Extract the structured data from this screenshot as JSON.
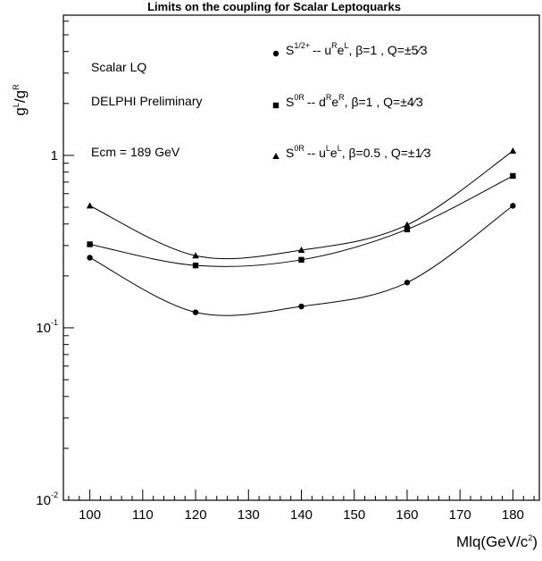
{
  "chart_data": {
    "type": "line",
    "title": "Limits on the coupling for Scalar Leptoquarks",
    "xlabel": "Mlq(GeV/c²)",
    "ylabel": "gL/gR",
    "xlim": [
      95,
      185
    ],
    "ylim": [
      0.01,
      6.5
    ],
    "yscale": "log",
    "grid": false,
    "x_ticks": [
      "100",
      "110",
      "120",
      "130",
      "140",
      "150",
      "160",
      "170",
      "180"
    ],
    "y_ticks": [
      {
        "base": "10",
        "exp": "-2",
        "value": 0.01
      },
      {
        "base": "10",
        "exp": "-1",
        "value": 0.1
      },
      {
        "base": "1",
        "exp": "",
        "value": 1
      }
    ],
    "annotations": [
      "Scalar LQ",
      "DELPHI Preliminary",
      "Ecm = 189 GeV"
    ],
    "legend_placement": "top-right",
    "series": [
      {
        "marker": "circle",
        "legend": {
          "main": "S",
          "sup": "1/2+",
          "dash": "-- ",
          "p1": "u",
          "p1sup": "R",
          "p2": "e",
          "p2sup": "L",
          "rest": ", β=1 , Q=±5⁄3"
        },
        "x": [
          100,
          120,
          140,
          160,
          180
        ],
        "y": [
          0.255,
          0.123,
          0.133,
          0.183,
          0.51
        ]
      },
      {
        "marker": "square",
        "legend": {
          "main": "S",
          "sup": "0R",
          "dash": "-- ",
          "p1": "d",
          "p1sup": "R",
          "p2": "e",
          "p2sup": "R",
          "rest": ", β=1 , Q=±4⁄3"
        },
        "x": [
          100,
          120,
          140,
          160,
          180
        ],
        "y": [
          0.305,
          0.23,
          0.248,
          0.372,
          0.76
        ]
      },
      {
        "marker": "triangle",
        "legend": {
          "main": "S",
          "sup": "0R",
          "dash": "-- ",
          "p1": "u",
          "p1sup": "L",
          "p2": "e",
          "p2sup": "L",
          "rest": ", β=0.5 , Q=±1⁄3"
        },
        "x": [
          100,
          120,
          140,
          160,
          180
        ],
        "y": [
          0.51,
          0.262,
          0.282,
          0.395,
          1.06
        ]
      }
    ]
  }
}
